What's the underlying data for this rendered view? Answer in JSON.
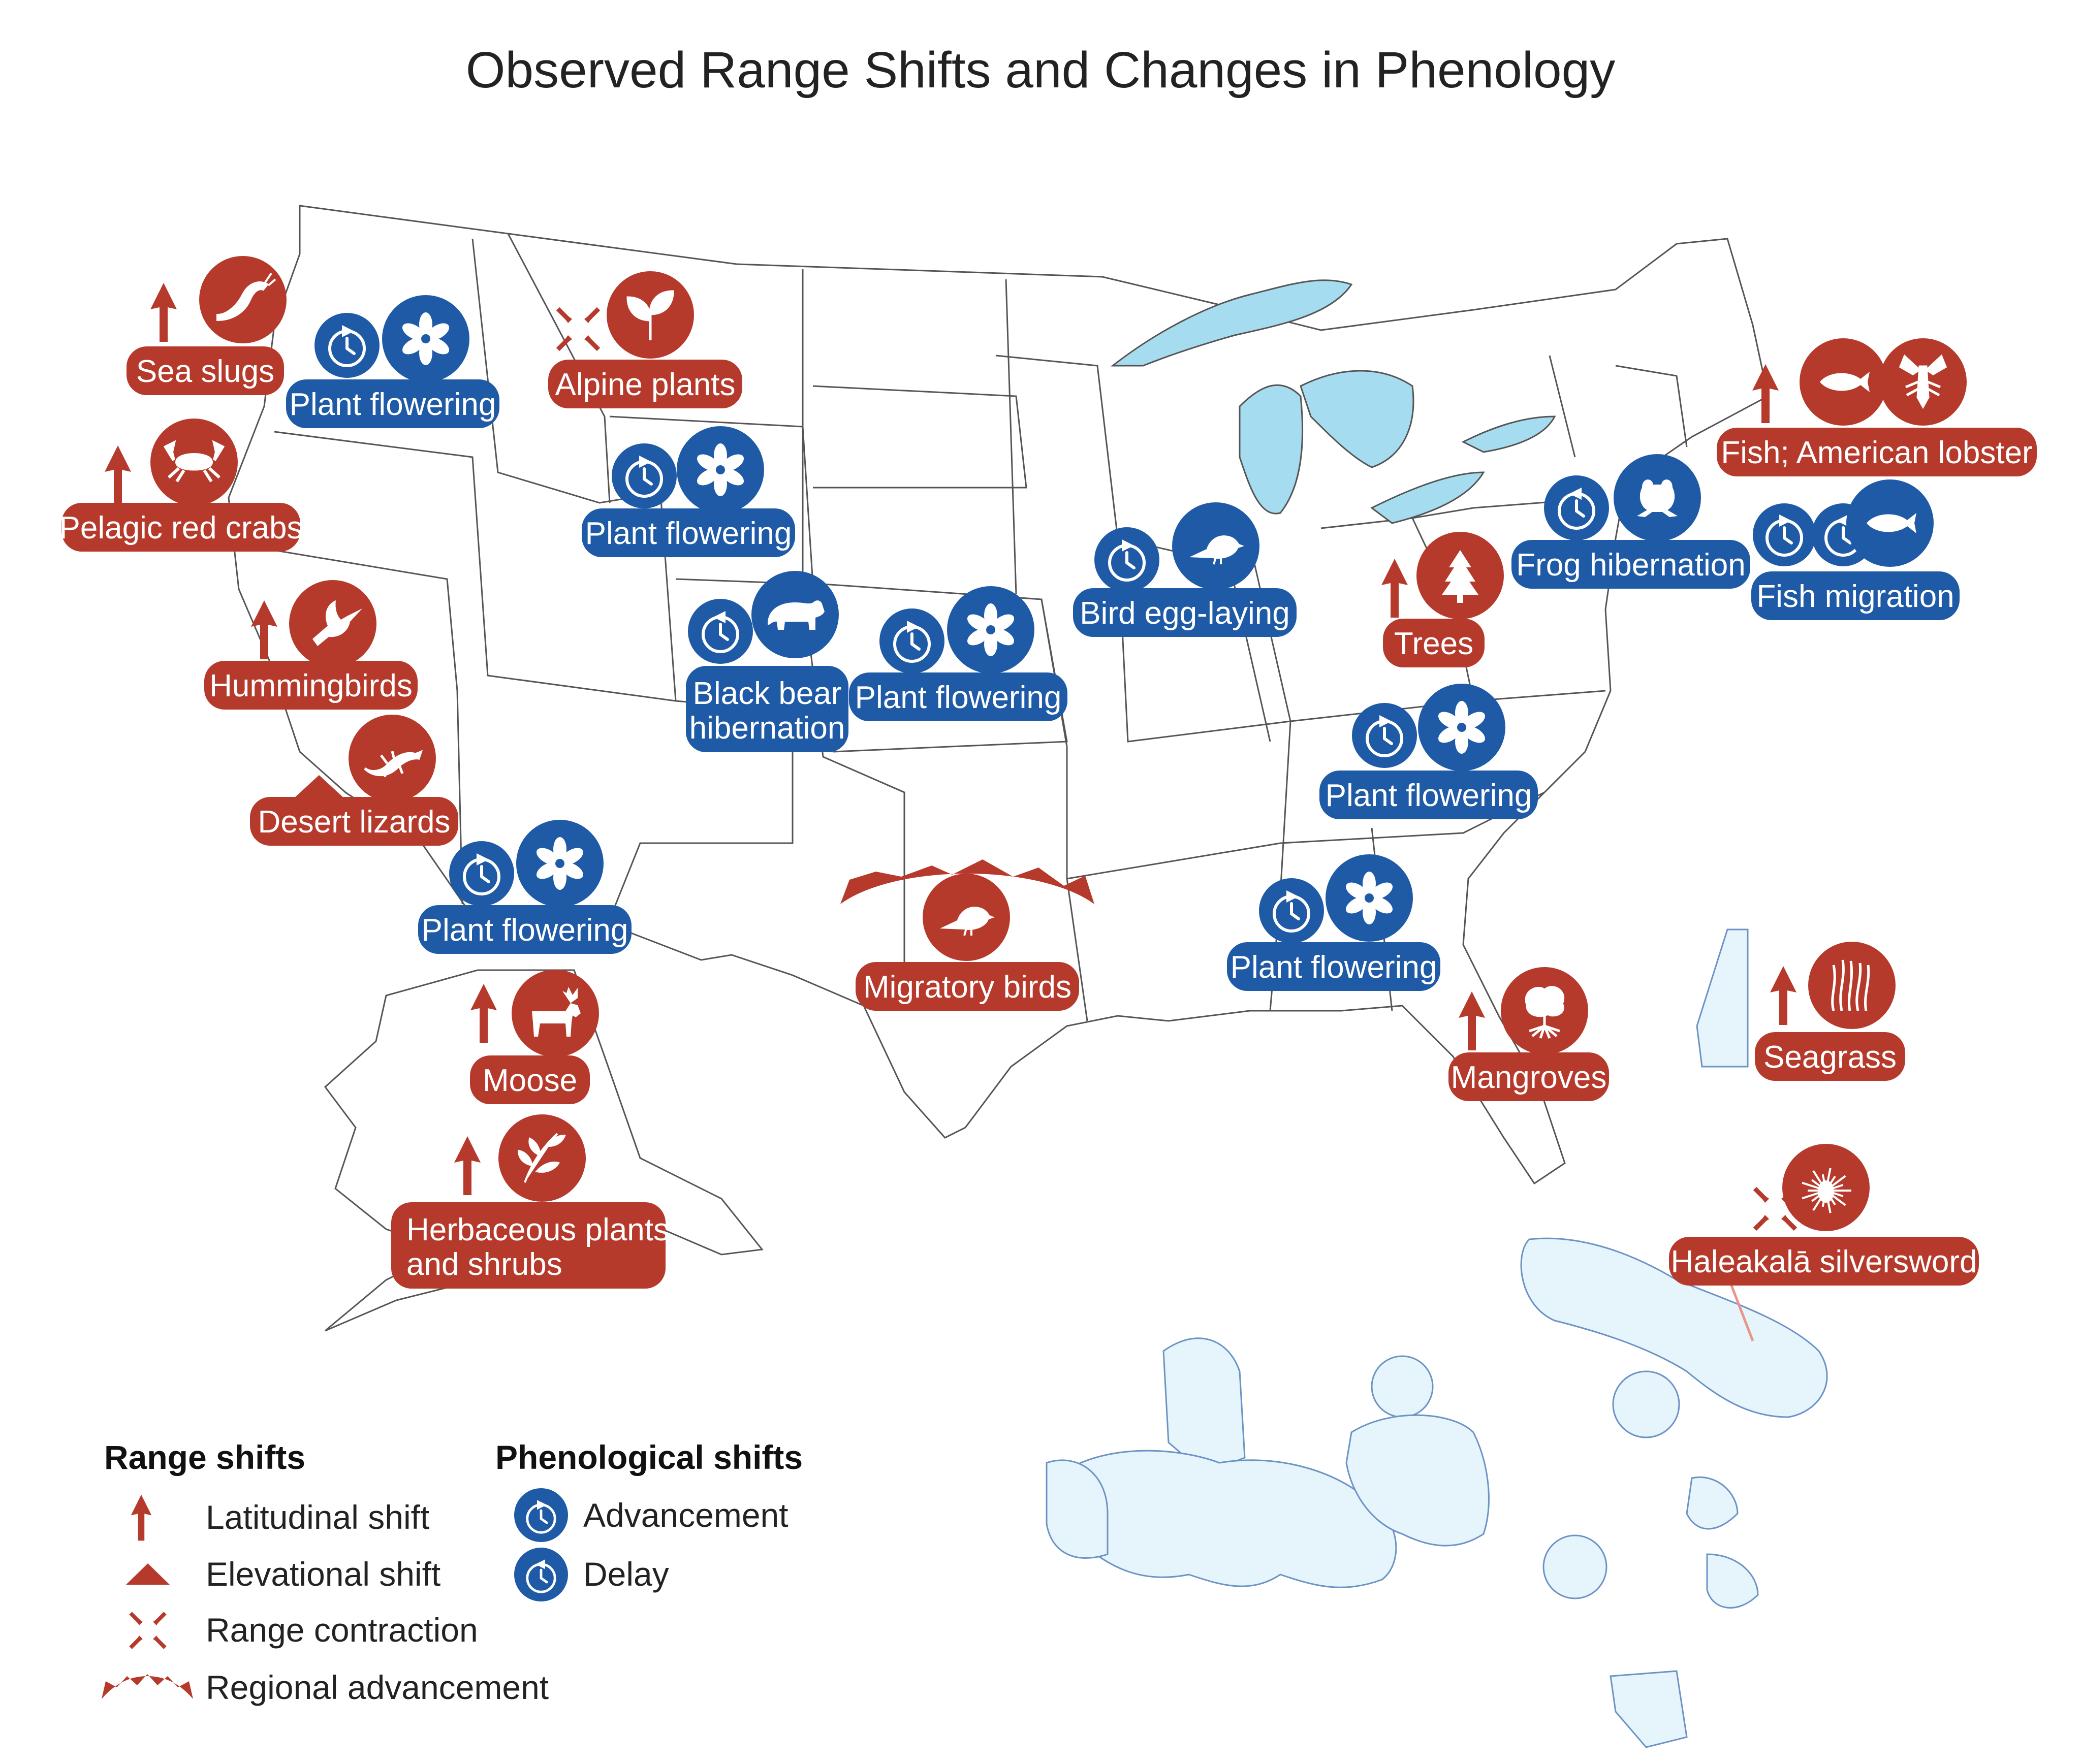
{
  "title": "Observed Range Shifts and Changes in Phenology",
  "colors": {
    "range": "#b63a2c",
    "phenology": "#1f5aa6",
    "water": "#a6dcef",
    "ocean_zone": "#e6f4fc",
    "zone_stroke": "#6b93c4",
    "state_stroke": "#555555",
    "leader": "#e8958a"
  },
  "badges": {
    "sea_slugs": {
      "label": "Sea slugs",
      "category": "range",
      "shift": "latitudinal",
      "icons": [
        "sea-slug-icon"
      ]
    },
    "pelagic_red_crabs": {
      "label": "Pelagic red crabs",
      "category": "range",
      "shift": "latitudinal",
      "icons": [
        "crab-icon"
      ]
    },
    "hummingbirds": {
      "label": "Hummingbirds",
      "category": "range",
      "shift": "latitudinal",
      "icons": [
        "hummingbird-icon"
      ]
    },
    "desert_lizards": {
      "label": "Desert lizards",
      "category": "range",
      "shift": "elevational",
      "icons": [
        "lizard-icon"
      ]
    },
    "alpine_plants": {
      "label": "Alpine plants",
      "category": "range",
      "shift": "range contraction",
      "icons": [
        "plant-sprout-icon"
      ]
    },
    "moose": {
      "label": "Moose",
      "category": "range",
      "shift": "latitudinal",
      "icons": [
        "moose-icon"
      ]
    },
    "herbaceous": {
      "label_line1": "Herbaceous plants",
      "label_line2": "and shrubs",
      "category": "range",
      "shift": "latitudinal",
      "icons": [
        "herb-shrub-icon"
      ]
    },
    "migratory_birds": {
      "label": "Migratory birds",
      "category": "range",
      "shift": "regional advancement",
      "icons": [
        "bird-icon"
      ]
    },
    "trees": {
      "label": "Trees",
      "category": "range",
      "shift": "latitudinal",
      "icons": [
        "tree-icon"
      ]
    },
    "fish_lobster": {
      "label": "Fish; American lobster",
      "category": "range",
      "shift": "latitudinal",
      "icons": [
        "fish-icon",
        "lobster-icon"
      ]
    },
    "mangroves": {
      "label": "Mangroves",
      "category": "range",
      "shift": "latitudinal",
      "icons": [
        "mangrove-icon"
      ]
    },
    "seagrass": {
      "label": "Seagrass",
      "category": "range",
      "shift": "latitudinal",
      "icons": [
        "seagrass-icon"
      ]
    },
    "silversword": {
      "label": "Haleakalā silversword",
      "category": "range",
      "shift": "range contraction",
      "icons": [
        "silversword-icon"
      ]
    },
    "plant_flowering_nw": {
      "label": "Plant flowering",
      "category": "phenology",
      "shift": "advancement",
      "icons": [
        "flower-icon"
      ]
    },
    "plant_flowering_wy": {
      "label": "Plant flowering",
      "category": "phenology",
      "shift": "advancement",
      "icons": [
        "flower-icon"
      ]
    },
    "black_bear": {
      "label_line1": "Black bear",
      "label_line2": "hibernation",
      "category": "phenology",
      "shift": "delay",
      "icons": [
        "bear-icon"
      ]
    },
    "plant_flowering_ks": {
      "label": "Plant flowering",
      "category": "phenology",
      "shift": "advancement",
      "icons": [
        "flower-icon"
      ]
    },
    "plant_flowering_sw": {
      "label": "Plant flowering",
      "category": "phenology",
      "shift": "advancement",
      "icons": [
        "flower-icon"
      ]
    },
    "bird_egg_laying": {
      "label": "Bird egg-laying",
      "category": "phenology",
      "shift": "advancement",
      "icons": [
        "bird-icon"
      ]
    },
    "frog_hibernation": {
      "label": "Frog hibernation",
      "category": "phenology",
      "shift": "delay",
      "icons": [
        "frog-icon"
      ]
    },
    "fish_migration": {
      "label": "Fish migration",
      "category": "phenology",
      "shift": "advancement and delay",
      "icons": [
        "fish-icon"
      ]
    },
    "plant_flowering_va": {
      "label": "Plant flowering",
      "category": "phenology",
      "shift": "advancement",
      "icons": [
        "flower-icon"
      ]
    },
    "plant_flowering_se": {
      "label": "Plant flowering",
      "category": "phenology",
      "shift": "advancement",
      "icons": [
        "flower-icon"
      ]
    }
  },
  "legend": {
    "range_heading": "Range shifts",
    "range_items": [
      "Latitudinal shift",
      "Elevational shift",
      "Range contraction",
      "Regional advancement"
    ],
    "phen_heading": "Phenological shifts",
    "phen_items": [
      "Advancement",
      "Delay"
    ]
  }
}
